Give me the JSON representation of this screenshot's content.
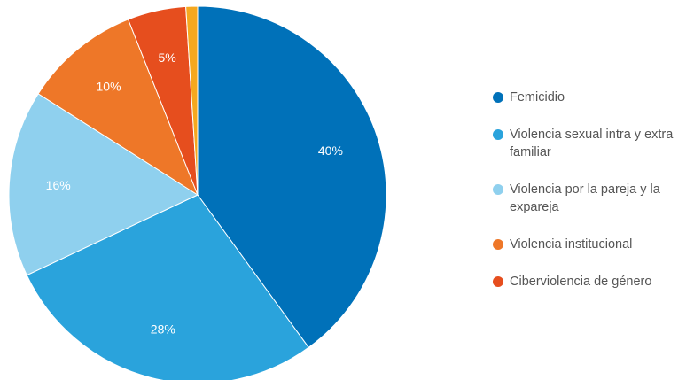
{
  "chart_data": {
    "type": "pie",
    "categories": [
      "Femicidio",
      "Violencia sexual intra y extra familiar",
      "Violencia por la pareja y la expareja",
      "Violencia institucional",
      "Ciberviolencia de género",
      null
    ],
    "values": [
      40,
      28,
      16,
      10,
      5,
      1
    ],
    "value_labels": [
      "40%",
      "28%",
      "16%",
      "10%",
      "5%",
      null
    ],
    "colors": [
      "#0071b9",
      "#2aa3dc",
      "#8fd0ee",
      "#ee7728",
      "#e64e1e",
      "#f5a81f"
    ],
    "legend": "right"
  }
}
